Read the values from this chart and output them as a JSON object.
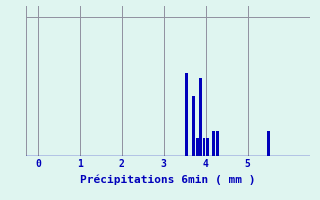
{
  "xlabel": "Précipitations 6min ( mm )",
  "background_color": "#dff5f0",
  "bar_color": "#0000bb",
  "axis_color": "#0000bb",
  "grid_color": "#9090a0",
  "xlim": [
    -0.3,
    6.5
  ],
  "ylim": [
    0,
    1.08
  ],
  "ytick_vals": [
    0,
    1
  ],
  "xtick_vals": [
    0,
    1,
    2,
    3,
    4,
    5
  ],
  "bar_positions": [
    3.55,
    3.7,
    3.8,
    3.88,
    3.96,
    4.05,
    4.18,
    4.28,
    5.5
  ],
  "bar_heights": [
    0.6,
    0.43,
    0.13,
    0.56,
    0.13,
    0.13,
    0.18,
    0.18,
    0.18
  ],
  "bar_width": 0.07,
  "xlabel_fontsize": 8,
  "tick_fontsize": 7,
  "ylabel_left_offset": -0.28
}
